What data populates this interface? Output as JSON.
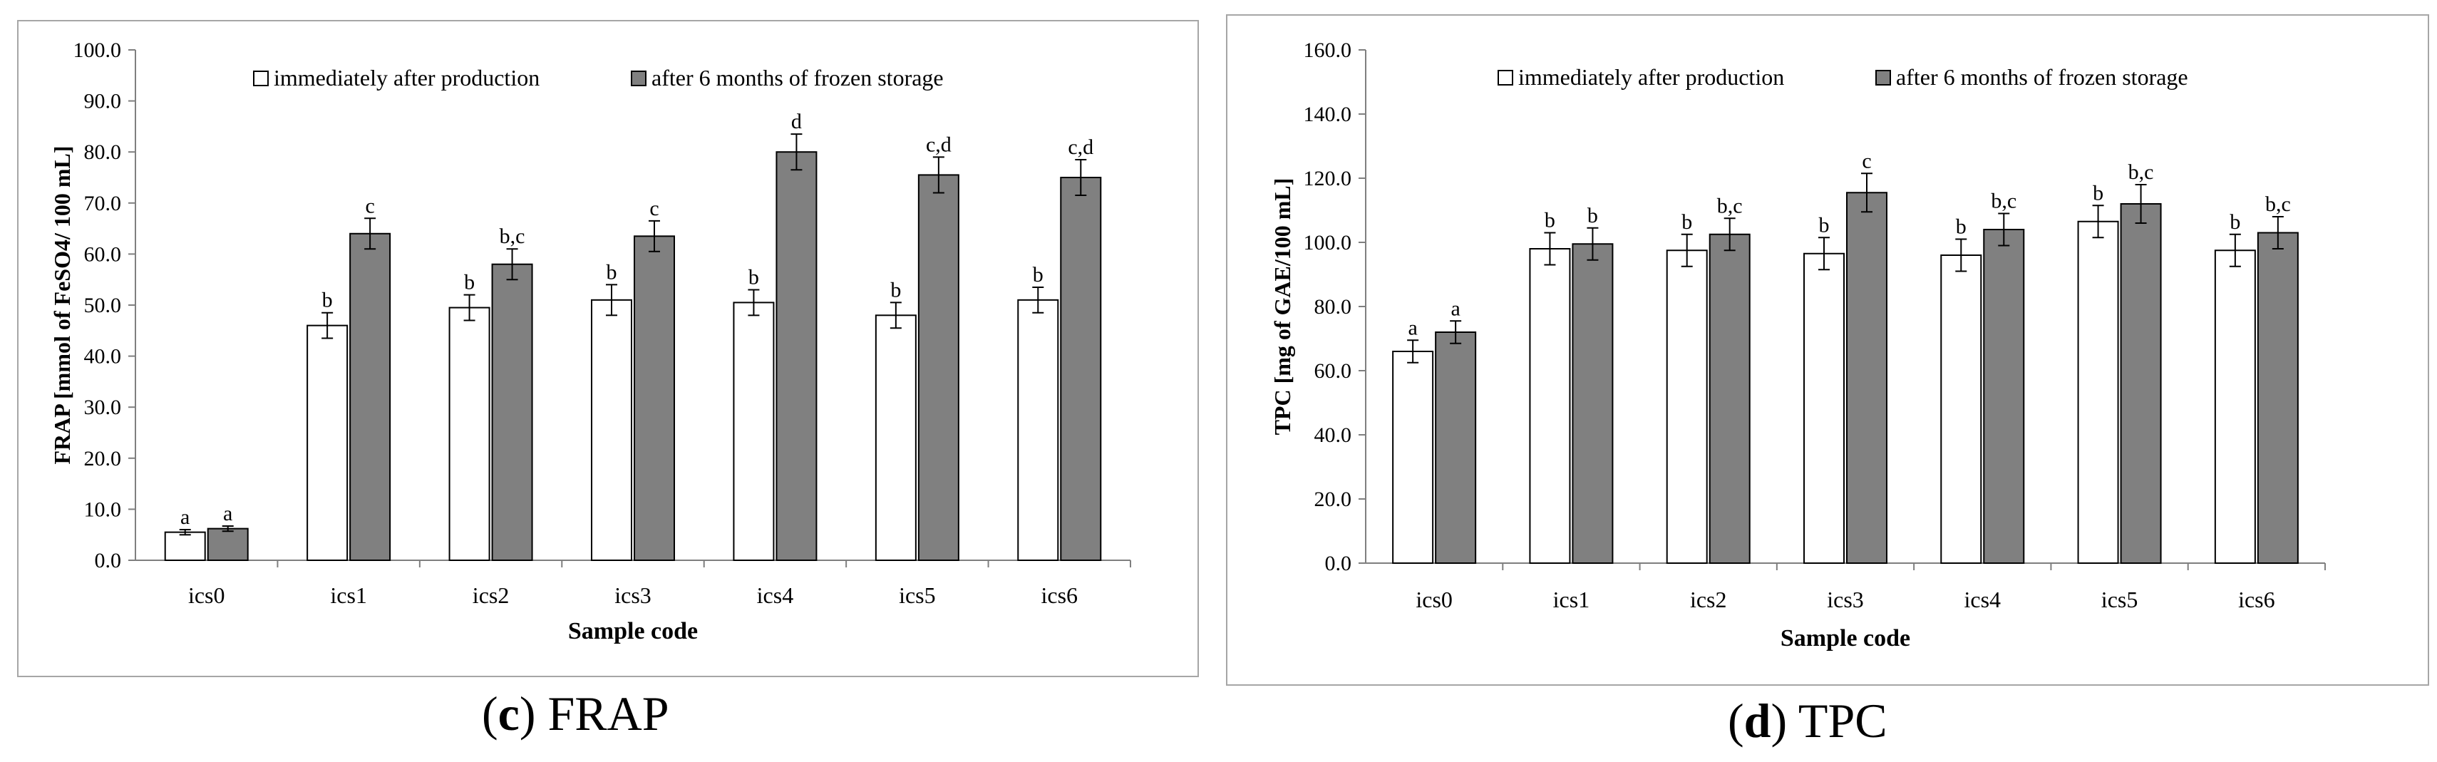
{
  "colors": {
    "immediate_fill": "#ffffff",
    "stored_fill": "#808080",
    "axis": "#7f7f7f",
    "frame": "#a6a6a6",
    "text": "#000000"
  },
  "captions": {
    "c": {
      "letter": "c",
      "open": "(",
      "close": ") FRAP"
    },
    "d": {
      "letter": "d",
      "open": "(",
      "close": ") TPC"
    }
  },
  "chart_data": [
    {
      "id": "c",
      "type": "bar",
      "title": "",
      "xlabel": "Sample code",
      "ylabel": "FRAP [mmol of FeSO4/ 100 mL]",
      "ylim": [
        0,
        100
      ],
      "ystep": 10,
      "tick_labels": [
        "0.0",
        "10.0",
        "20.0",
        "30.0",
        "40.0",
        "50.0",
        "60.0",
        "70.0",
        "80.0",
        "90.0",
        "100.0"
      ],
      "categories": [
        "ics0",
        "ics1",
        "ics2",
        "ics3",
        "ics4",
        "ics5",
        "ics6"
      ],
      "legend": {
        "position": "top-center"
      },
      "series": [
        {
          "name": "immediately after production",
          "color": "#ffffff",
          "values": [
            5.5,
            46.0,
            49.5,
            51.0,
            50.5,
            48.0,
            51.0
          ],
          "errors": [
            0.5,
            2.5,
            2.5,
            3.0,
            2.5,
            2.5,
            2.5
          ],
          "labels": [
            "a",
            "b",
            "b",
            "b",
            "b",
            "b",
            "b"
          ]
        },
        {
          "name": "after 6 months of frozen storage",
          "color": "#808080",
          "values": [
            6.2,
            64.0,
            58.0,
            63.5,
            80.0,
            75.5,
            75.0
          ],
          "errors": [
            0.5,
            3.0,
            3.0,
            3.0,
            3.5,
            3.5,
            3.5
          ],
          "labels": [
            "a",
            "c",
            "b,c",
            "c",
            "d",
            "c,d",
            "c,d"
          ]
        }
      ]
    },
    {
      "id": "d",
      "type": "bar",
      "title": "",
      "xlabel": "Sample code",
      "ylabel": "TPC [mg of GAE/100 mL]",
      "ylim": [
        0,
        160
      ],
      "ystep": 20,
      "tick_labels": [
        "0.0",
        "20.0",
        "40.0",
        "60.0",
        "80.0",
        "100.0",
        "120.0",
        "140.0",
        "160.0"
      ],
      "categories": [
        "ics0",
        "ics1",
        "ics2",
        "ics3",
        "ics4",
        "ics5",
        "ics6"
      ],
      "legend": {
        "position": "top-center"
      },
      "series": [
        {
          "name": "immediately after production",
          "color": "#ffffff",
          "values": [
            66.0,
            98.0,
            97.5,
            96.5,
            96.0,
            106.5,
            97.5
          ],
          "errors": [
            3.5,
            5.0,
            5.0,
            5.0,
            5.0,
            5.0,
            5.0
          ],
          "labels": [
            "a",
            "b",
            "b",
            "b",
            "b",
            "b",
            "b"
          ]
        },
        {
          "name": "after 6 months of frozen storage",
          "color": "#808080",
          "values": [
            72.0,
            99.5,
            102.5,
            115.5,
            104.0,
            112.0,
            103.0
          ],
          "errors": [
            3.5,
            5.0,
            5.0,
            6.0,
            5.0,
            6.0,
            5.0
          ],
          "labels": [
            "a",
            "b",
            "b,c",
            "c",
            "b,c",
            "b,c",
            "b,c"
          ]
        }
      ]
    }
  ]
}
